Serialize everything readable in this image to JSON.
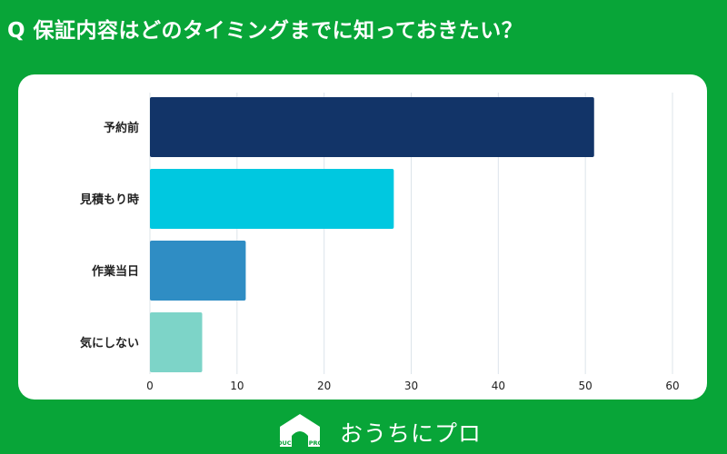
{
  "header": {
    "title": "Q 保証内容はどのタイミングまでに知っておきたい？"
  },
  "chart_data": {
    "type": "bar",
    "orientation": "horizontal",
    "categories": [
      "予約前",
      "見積もり時",
      "作業当日",
      "気にしない"
    ],
    "values": [
      51,
      28,
      11,
      6
    ],
    "colors": [
      "#123468",
      "#00c8e0",
      "#2f8dc4",
      "#7dd4c8"
    ],
    "xlim": [
      0,
      60
    ],
    "xticks": [
      "0",
      "10",
      "20",
      "30",
      "40",
      "50",
      "60"
    ],
    "grid": true
  },
  "footer": {
    "logo_text": "OUCHI ni PRO",
    "brand_name": "おうちにプロ"
  }
}
